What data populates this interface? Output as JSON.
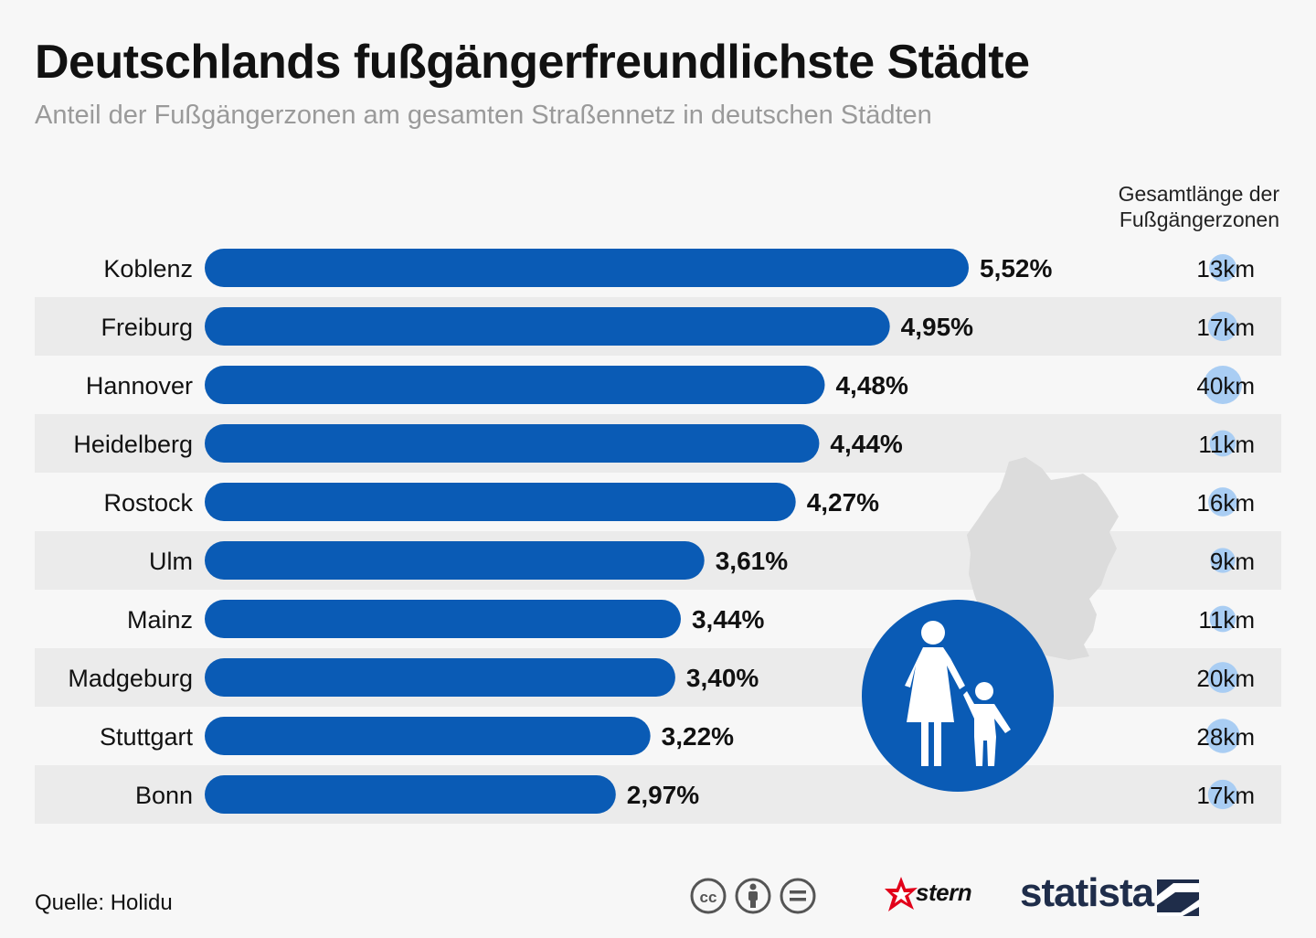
{
  "title": "Deutschlands fußgängerfreundlichste Städte",
  "subtitle": "Anteil der Fußgängerzonen am gesamten Straßennetz in deutschen Städten",
  "column_header": [
    "Gesamtlänge der",
    "Fußgängerzonen"
  ],
  "colors": {
    "bar": "#0a5bb5",
    "row_band": "#ebebeb",
    "bubble": "#a9cdf3",
    "map": "#dcdcdc",
    "sign": "#0a5bb5"
  },
  "chart_data": {
    "type": "bar",
    "orientation": "horizontal",
    "title": "Deutschlands fußgängerfreundlichste Städte",
    "subtitle": "Anteil der Fußgängerzonen am gesamten Straßennetz in deutschen Städten",
    "categories": [
      "Koblenz",
      "Freiburg",
      "Hannover",
      "Heidelberg",
      "Rostock",
      "Ulm",
      "Mainz",
      "Madgeburg",
      "Stuttgart",
      "Bonn"
    ],
    "values": [
      5.52,
      4.95,
      4.48,
      4.44,
      4.27,
      3.61,
      3.44,
      3.4,
      3.22,
      2.97
    ],
    "value_labels": [
      "5,52%",
      "4,95%",
      "4,48%",
      "4,44%",
      "4,27%",
      "3,61%",
      "3,44%",
      "3,40%",
      "3,22%",
      "2,97%"
    ],
    "secondary_series": {
      "name": "Gesamtlänge der Fußgängerzonen",
      "unit": "km",
      "values": [
        13,
        17,
        40,
        11,
        16,
        9,
        11,
        20,
        28,
        17
      ],
      "labels": [
        "13km",
        "17km",
        "40km",
        "11km",
        "16km",
        "9km",
        "11km",
        "20km",
        "28km",
        "17km"
      ]
    },
    "xlim": [
      0,
      5.52
    ],
    "ylabel": "",
    "xlabel": ""
  },
  "footer": {
    "source": "Quelle: Holidu",
    "stern": "stern",
    "statista": "statista"
  }
}
